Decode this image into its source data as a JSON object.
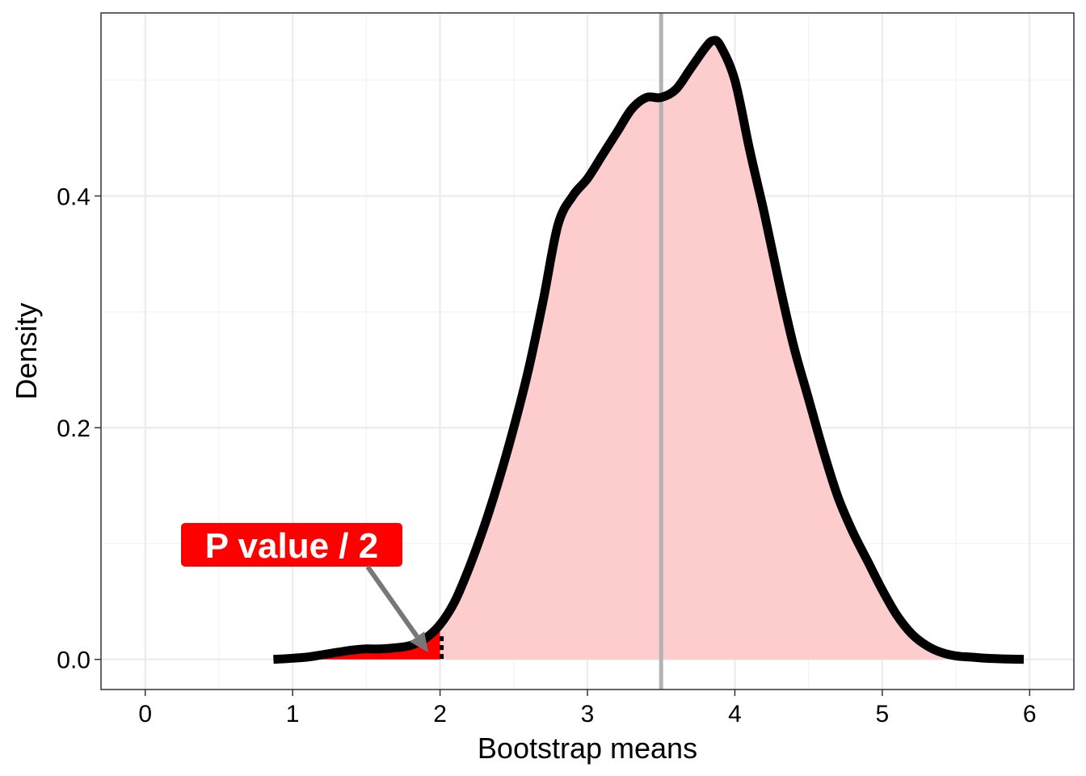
{
  "chart_data": {
    "type": "area",
    "title": "",
    "xlabel": "Bootstrap means",
    "ylabel": "Density",
    "xlim": [
      -0.3,
      6.3
    ],
    "ylim": [
      -0.026,
      0.558
    ],
    "x_ticks": [
      0,
      1,
      2,
      3,
      4,
      5,
      6
    ],
    "y_ticks": [
      0.0,
      0.2,
      0.4
    ],
    "x_tick_labels": [
      "0",
      "1",
      "2",
      "3",
      "4",
      "5",
      "6"
    ],
    "y_tick_labels": [
      "0.0",
      "0.2",
      "0.4"
    ],
    "x_minor_grid": [
      0.5,
      1.5,
      2.5,
      3.5,
      4.5,
      5.5
    ],
    "y_minor_grid": [
      0.1,
      0.3,
      0.5
    ],
    "grid": true,
    "series": [
      {
        "x": [
          0.87,
          1.0,
          1.1,
          1.2,
          1.3,
          1.4,
          1.5,
          1.6,
          1.7,
          1.8,
          1.9,
          2.0,
          2.1,
          2.2,
          2.3,
          2.4,
          2.5,
          2.6,
          2.7,
          2.8,
          2.9,
          3.0,
          3.1,
          3.2,
          3.3,
          3.4,
          3.5,
          3.6,
          3.7,
          3.8,
          3.85,
          3.9,
          4.0,
          4.1,
          4.2,
          4.3,
          4.4,
          4.5,
          4.6,
          4.7,
          4.8,
          4.9,
          5.0,
          5.1,
          5.2,
          5.3,
          5.4,
          5.5,
          5.6,
          5.7,
          5.8,
          5.96
        ],
        "y": [
          0.0,
          0.001,
          0.002,
          0.004,
          0.006,
          0.008,
          0.009,
          0.009,
          0.01,
          0.012,
          0.018,
          0.03,
          0.05,
          0.08,
          0.115,
          0.155,
          0.2,
          0.25,
          0.31,
          0.375,
          0.4,
          0.415,
          0.435,
          0.455,
          0.475,
          0.485,
          0.485,
          0.492,
          0.51,
          0.528,
          0.534,
          0.53,
          0.5,
          0.44,
          0.385,
          0.325,
          0.27,
          0.225,
          0.18,
          0.14,
          0.11,
          0.085,
          0.06,
          0.038,
          0.022,
          0.012,
          0.006,
          0.003,
          0.002,
          0.001,
          0.0005,
          0.0
        ]
      }
    ],
    "tail_threshold": 2.0,
    "reference_line_x": 3.5,
    "colors": {
      "curve": "#000000",
      "fill": "#fdcccd",
      "tail_fill": "#ff0000",
      "reference_line": "#b3b3b3",
      "grid_major": "#ebebeb",
      "grid_minor": "#f3f3f3",
      "annotation_box": "#ff0000",
      "annotation_text": "#ffffff",
      "arrow": "#777777"
    },
    "annotation": {
      "text": "P value / 2",
      "point_to": [
        1.92,
        0.006
      ]
    }
  }
}
